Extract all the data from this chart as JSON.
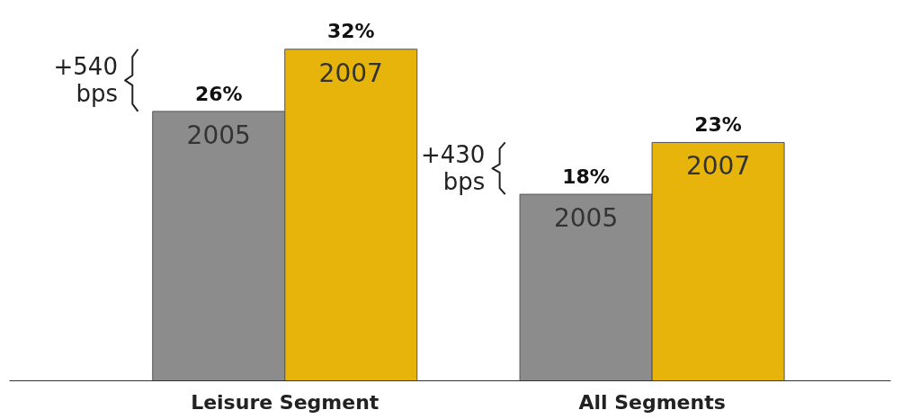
{
  "chart_data": {
    "type": "bar",
    "categories": [
      "Leisure Segment",
      "All Segments"
    ],
    "series": [
      {
        "name": "2005",
        "color": "#8c8c8c",
        "values": [
          26,
          18
        ],
        "value_labels": [
          "26%",
          "18%"
        ]
      },
      {
        "name": "2007",
        "color": "#e6b40a",
        "values": [
          32,
          23
        ],
        "value_labels": [
          "32%",
          "23%"
        ]
      }
    ],
    "annotations": [
      "+540\nbps",
      "+430\nbps"
    ],
    "grid": false,
    "tick_labels": "x"
  }
}
